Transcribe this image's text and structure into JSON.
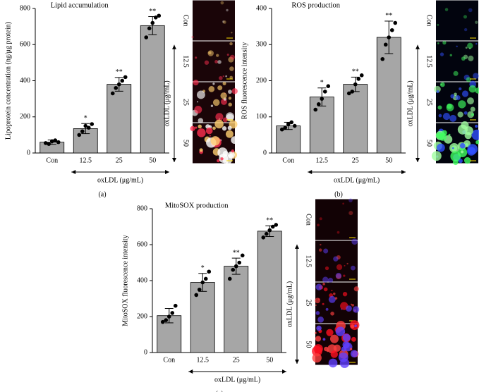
{
  "chart_data": [
    {
      "type": "bar",
      "title": "Lipid accumulation",
      "ylabel": "Lipoprotein concentration (ng/μg protein)",
      "xlabel": "oxLDL (μg/mL)",
      "categories": [
        "Con",
        "12.5",
        "25",
        "50"
      ],
      "values": [
        60,
        135,
        380,
        705
      ],
      "errors": [
        12,
        28,
        38,
        50
      ],
      "points": [
        [
          55,
          50,
          65,
          70,
          60
        ],
        [
          100,
          120,
          150,
          140,
          160
        ],
        [
          330,
          360,
          380,
          400,
          420
        ],
        [
          640,
          690,
          720,
          750,
          760
        ]
      ],
      "annotations": [
        null,
        "*",
        "**",
        "**"
      ],
      "ylim": [
        0,
        800
      ],
      "yticks": [
        0,
        200,
        400,
        600,
        800
      ],
      "color": "#a6a6a6",
      "panel_label": "(a)",
      "image_panel": {
        "labels": [
          "Con",
          "12.5",
          "25",
          "50"
        ],
        "axis_label": "oxLDL (μg/mL)"
      }
    },
    {
      "type": "bar",
      "title": "ROS production",
      "ylabel": "ROS fluorescence intensity",
      "xlabel": "oxLDL (μg/mL)",
      "categories": [
        "Con",
        "12.5",
        "25",
        "50"
      ],
      "values": [
        75,
        155,
        190,
        320
      ],
      "errors": [
        10,
        25,
        20,
        45
      ],
      "points": [
        [
          65,
          70,
          80,
          85,
          75
        ],
        [
          120,
          135,
          150,
          170,
          185
        ],
        [
          165,
          170,
          190,
          205,
          215
        ],
        [
          260,
          300,
          320,
          340,
          360
        ]
      ],
      "annotations": [
        null,
        "*",
        "**",
        "**"
      ],
      "ylim": [
        0,
        400
      ],
      "yticks": [
        0,
        100,
        200,
        300,
        400
      ],
      "color": "#a6a6a6",
      "panel_label": "(b)",
      "image_panel": {
        "labels": [
          "Con",
          "12.5",
          "25",
          "50"
        ],
        "axis_label": "oxLDL (μg/mL)"
      }
    },
    {
      "type": "bar",
      "title": "MitoSOX production",
      "ylabel": "MitoSOX fluorescence intensity",
      "xlabel": "oxLDL (μg/mL)",
      "categories": [
        "Con",
        "12.5",
        "25",
        "50"
      ],
      "values": [
        205,
        390,
        480,
        675
      ],
      "errors": [
        40,
        50,
        45,
        30
      ],
      "points": [
        [
          170,
          180,
          200,
          220,
          260
        ],
        [
          320,
          350,
          390,
          410,
          450
        ],
        [
          410,
          460,
          480,
          500,
          540
        ],
        [
          640,
          660,
          680,
          700,
          710
        ]
      ],
      "annotations": [
        null,
        "*",
        "**",
        "**"
      ],
      "ylim": [
        0,
        800
      ],
      "yticks": [
        0,
        200,
        400,
        600,
        800
      ],
      "color": "#a6a6a6",
      "panel_label": "(c)",
      "image_panel": {
        "labels": [
          "Con",
          "12.5",
          "25",
          "50"
        ],
        "axis_label": "oxLDL (μg/mL)"
      }
    }
  ]
}
